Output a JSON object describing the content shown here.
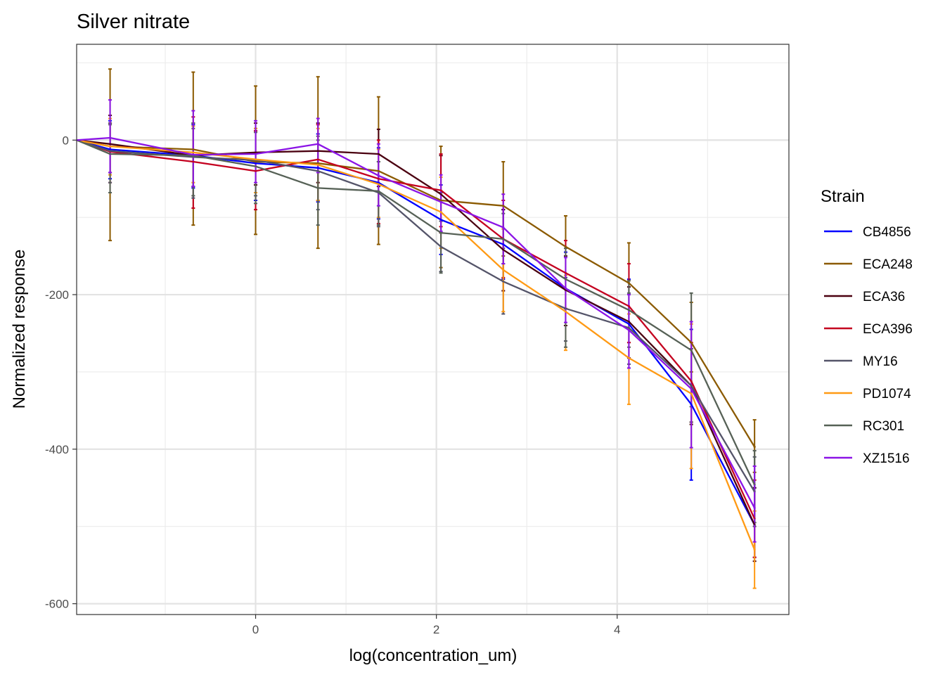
{
  "chart_data": {
    "type": "line",
    "title": "Silver nitrate",
    "xlabel": "log(concentration_um)",
    "ylabel": "Normalized response",
    "xlim": [
      -1.98,
      5.9
    ],
    "ylim": [
      -614,
      124
    ],
    "x_ticks": [
      0,
      2,
      4
    ],
    "x_tick_labels": [
      "0",
      "2",
      "4"
    ],
    "y_ticks": [
      0,
      -200,
      -400,
      -600
    ],
    "y_tick_labels": [
      "0",
      "-200",
      "-400",
      "-600"
    ],
    "grid": true,
    "legend_title": "Strain",
    "legend_position": "right",
    "x": [
      -1.98,
      -1.61,
      -0.69,
      0.0,
      0.69,
      1.36,
      2.05,
      2.74,
      3.43,
      4.13,
      4.82,
      5.52
    ],
    "series": [
      {
        "name": "CB4856",
        "color": "#0000ff",
        "values": [
          0,
          -12,
          -20,
          -30,
          -36,
          -55,
          -103,
          -135,
          -192,
          -238,
          -342,
          -498
        ],
        "err_low": [
          0,
          -50,
          -62,
          -78,
          -80,
          -102,
          -148,
          -180,
          -240,
          -295,
          -440,
          -540
        ],
        "err_high": [
          0,
          25,
          20,
          12,
          8,
          -10,
          -58,
          -90,
          -145,
          -180,
          -245,
          -450
        ]
      },
      {
        "name": "ECA248",
        "color": "#8b5a00",
        "values": [
          0,
          -8,
          -12,
          -28,
          -30,
          -40,
          -78,
          -85,
          -138,
          -185,
          -262,
          -397
        ],
        "err_low": [
          0,
          -130,
          -110,
          -122,
          -140,
          -135,
          -165,
          -150,
          -240,
          -262,
          -300,
          -430
        ],
        "err_high": [
          0,
          92,
          88,
          70,
          82,
          56,
          -8,
          -28,
          -98,
          -133,
          -210,
          -362
        ]
      },
      {
        "name": "ECA36",
        "color": "#4a0010",
        "values": [
          0,
          -5,
          -20,
          -16,
          -14,
          -18,
          -70,
          -142,
          -194,
          -235,
          -318,
          -498
        ],
        "err_low": [
          0,
          -42,
          -60,
          -58,
          -55,
          -60,
          -120,
          -195,
          -240,
          -282,
          -368,
          -545
        ],
        "err_high": [
          0,
          32,
          22,
          22,
          22,
          14,
          -20,
          -90,
          -150,
          -190,
          -270,
          -450
        ]
      },
      {
        "name": "ECA396",
        "color": "#c4001f",
        "values": [
          0,
          -15,
          -28,
          -40,
          -25,
          -50,
          -65,
          -128,
          -172,
          -215,
          -312,
          -490
        ],
        "err_low": [
          0,
          -55,
          -88,
          -90,
          -78,
          -108,
          -112,
          -178,
          -218,
          -262,
          -365,
          -540
        ],
        "err_high": [
          0,
          22,
          30,
          12,
          20,
          0,
          -18,
          -78,
          -130,
          -160,
          -262,
          -440
        ]
      },
      {
        "name": "MY16",
        "color": "#545469",
        "values": [
          0,
          -14,
          -22,
          -26,
          -40,
          -68,
          -138,
          -183,
          -218,
          -243,
          -318,
          -455
        ],
        "err_low": [
          0,
          -55,
          -75,
          -72,
          -90,
          -112,
          -170,
          -225,
          -260,
          -290,
          -365,
          -500
        ],
        "err_high": [
          0,
          22,
          15,
          15,
          5,
          -28,
          -105,
          -140,
          -178,
          -198,
          -270,
          -410
        ]
      },
      {
        "name": "PD1074",
        "color": "#ff9a14",
        "values": [
          0,
          -8,
          -16,
          -25,
          -32,
          -57,
          -93,
          -168,
          -222,
          -282,
          -328,
          -530
        ],
        "err_low": [
          0,
          -45,
          -55,
          -68,
          -78,
          -100,
          -140,
          -222,
          -272,
          -342,
          -425,
          -580
        ],
        "err_high": [
          0,
          28,
          18,
          15,
          15,
          -12,
          -48,
          -115,
          -175,
          -225,
          -238,
          -480
        ]
      },
      {
        "name": "RC301",
        "color": "#566156",
        "values": [
          0,
          -18,
          -20,
          -34,
          -62,
          -66,
          -120,
          -128,
          -180,
          -220,
          -272,
          -446
        ],
        "err_low": [
          0,
          -68,
          -72,
          -82,
          -110,
          -110,
          -172,
          -160,
          -268,
          -268,
          -345,
          -495
        ],
        "err_high": [
          0,
          20,
          22,
          10,
          0,
          -28,
          -68,
          -95,
          -140,
          -182,
          -198,
          -402
        ]
      },
      {
        "name": "XZ1516",
        "color": "#8b14e6",
        "values": [
          0,
          3,
          -19,
          -18,
          -5,
          -46,
          -80,
          -113,
          -192,
          -246,
          -322,
          -476
        ],
        "err_low": [
          0,
          -42,
          -60,
          -55,
          -42,
          -85,
          -118,
          -160,
          -236,
          -295,
          -398,
          -520
        ],
        "err_high": [
          0,
          52,
          38,
          25,
          28,
          -5,
          -45,
          -70,
          -152,
          -200,
          -235,
          -422
        ]
      }
    ]
  }
}
